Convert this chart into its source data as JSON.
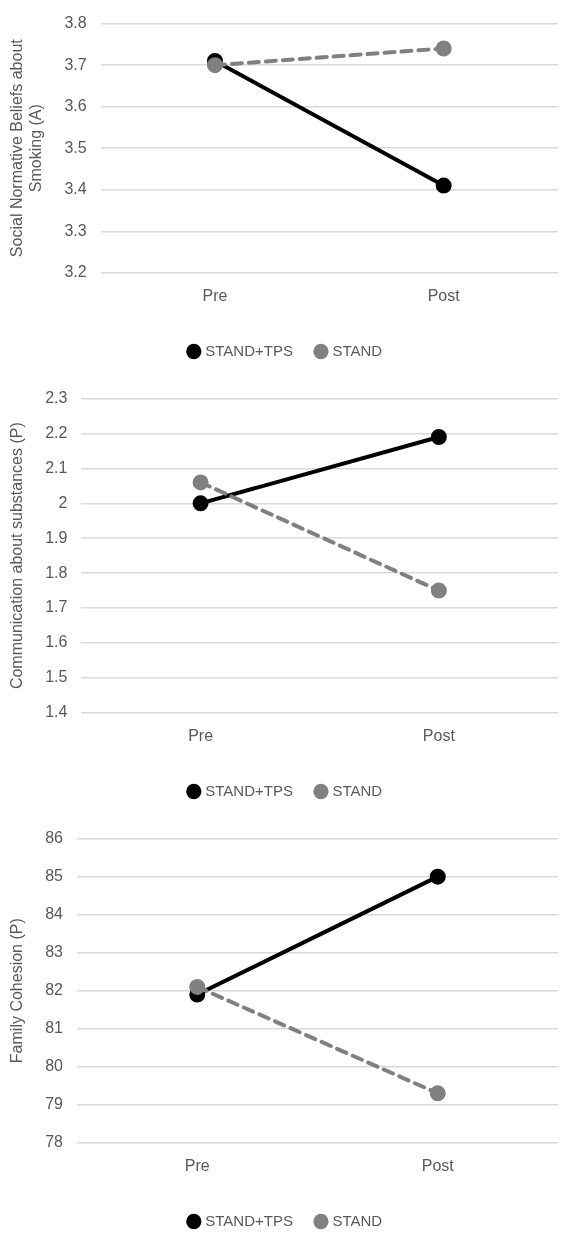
{
  "chart_data": [
    {
      "type": "line",
      "ylabel": "Social Normative Beliefs about Smoking (A)",
      "categories": [
        "Pre",
        "Post"
      ],
      "ylim": [
        3.2,
        3.8
      ],
      "yticks": [
        3.2,
        3.3,
        3.4,
        3.5,
        3.6,
        3.7,
        3.8
      ],
      "grid": "y",
      "legend": "bottom",
      "marker": "circle",
      "series": [
        {
          "name": "STAND+TPS",
          "color": "#000000",
          "values": [
            3.71,
            3.41
          ],
          "line_style": "solid"
        },
        {
          "name": "STAND",
          "color": "#808080",
          "values": [
            3.7,
            3.74
          ],
          "line_style": "dashed"
        }
      ]
    },
    {
      "type": "line",
      "ylabel": "Communication about substances (P)",
      "categories": [
        "Pre",
        "Post"
      ],
      "ylim": [
        1.4,
        2.3
      ],
      "yticks": [
        1.4,
        1.5,
        1.6,
        1.7,
        1.8,
        1.9,
        2,
        2.1,
        2.2,
        2.3
      ],
      "grid": "y",
      "legend": "bottom",
      "marker": "circle",
      "series": [
        {
          "name": "STAND+TPS",
          "color": "#000000",
          "values": [
            2.0,
            2.19
          ],
          "line_style": "solid"
        },
        {
          "name": "STAND",
          "color": "#808080",
          "values": [
            2.06,
            1.75
          ],
          "line_style": "dashed"
        }
      ]
    },
    {
      "type": "line",
      "ylabel": "Family Cohesion (P)",
      "categories": [
        "Pre",
        "Post"
      ],
      "ylim": [
        78,
        86
      ],
      "yticks": [
        78,
        79,
        80,
        81,
        82,
        83,
        84,
        85,
        86
      ],
      "grid": "y",
      "legend": "bottom",
      "marker": "circle",
      "series": [
        {
          "name": "STAND+TPS",
          "color": "#000000",
          "values": [
            81.9,
            85.0
          ],
          "line_style": "solid"
        },
        {
          "name": "STAND",
          "color": "#808080",
          "values": [
            82.1,
            79.3
          ],
          "line_style": "dashed"
        }
      ]
    }
  ]
}
